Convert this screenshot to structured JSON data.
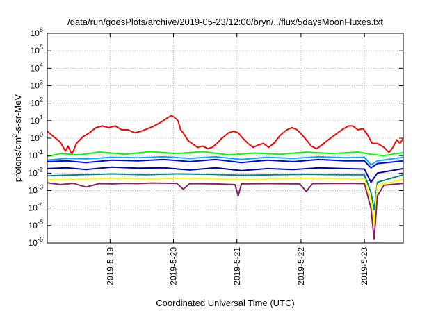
{
  "chart_data": {
    "type": "line",
    "title": "/data/run/goesPlots/archive/2019-05-23/12:00/bryn/../flux/5daysMoonFluxes.txt",
    "xlabel": "Coordinated Universal Time (UTC)",
    "ylabel": {
      "prefix": "protons/cm",
      "sup": "2",
      "suffix": "-s-sr-MeV"
    },
    "x_range_days": [
      0,
      5.5
    ],
    "x_ticks": [
      {
        "t": 0.97,
        "label": "2019-5-19"
      },
      {
        "t": 1.95,
        "label": "2019-5-20"
      },
      {
        "t": 2.93,
        "label": "2019-5-21"
      },
      {
        "t": 3.92,
        "label": "2019-5-22"
      },
      {
        "t": 4.9,
        "label": "2019-5-23"
      }
    ],
    "y_scale": "log",
    "y_exponent_range": [
      -6,
      6
    ],
    "y_ticks": [
      {
        "exp": 6,
        "base": "10",
        "sup": "6"
      },
      {
        "exp": 5,
        "base": "10",
        "sup": "5"
      },
      {
        "exp": 4,
        "base": "10",
        "sup": "4"
      },
      {
        "exp": 3,
        "base": "10",
        "sup": "3"
      },
      {
        "exp": 2,
        "base": "10",
        "sup": "2"
      },
      {
        "exp": 1,
        "base": "10",
        "sup": "1"
      },
      {
        "exp": 0,
        "base": "10",
        "sup": "0"
      },
      {
        "exp": -1,
        "base": "10",
        "sup": "-1"
      },
      {
        "exp": -2,
        "base": "10",
        "sup": "-2"
      },
      {
        "exp": -3,
        "base": "10",
        "sup": "-3"
      },
      {
        "exp": -4,
        "base": "10",
        "sup": "-4"
      },
      {
        "exp": -5,
        "base": "10",
        "sup": "-5"
      },
      {
        "exp": -6,
        "base": "10",
        "sup": "-6"
      }
    ],
    "grid": true,
    "series": [
      {
        "color": "#ff0000",
        "points": [
          [
            0.0,
            2.5
          ],
          [
            0.1,
            1.2
          ],
          [
            0.2,
            0.6
          ],
          [
            0.28,
            0.18
          ],
          [
            0.32,
            0.35
          ],
          [
            0.38,
            0.12
          ],
          [
            0.45,
            0.5
          ],
          [
            0.55,
            1.2
          ],
          [
            0.65,
            2
          ],
          [
            0.75,
            4
          ],
          [
            0.85,
            5
          ],
          [
            0.95,
            4
          ],
          [
            1.05,
            5
          ],
          [
            1.15,
            3
          ],
          [
            1.25,
            3
          ],
          [
            1.35,
            2
          ],
          [
            1.45,
            2.5
          ],
          [
            1.55,
            3.5
          ],
          [
            1.65,
            5
          ],
          [
            1.75,
            8
          ],
          [
            1.85,
            14
          ],
          [
            1.92,
            20
          ],
          [
            1.98,
            14
          ],
          [
            2.02,
            10
          ],
          [
            2.06,
            3
          ],
          [
            2.1,
            2
          ],
          [
            2.18,
            0.7
          ],
          [
            2.25,
            0.45
          ],
          [
            2.32,
            0.3
          ],
          [
            2.4,
            0.35
          ],
          [
            2.48,
            0.25
          ],
          [
            2.55,
            0.3
          ],
          [
            2.62,
            0.5
          ],
          [
            2.7,
            1
          ],
          [
            2.8,
            2
          ],
          [
            2.88,
            2.5
          ],
          [
            2.95,
            2
          ],
          [
            3.02,
            1
          ],
          [
            3.1,
            0.5
          ],
          [
            3.18,
            0.3
          ],
          [
            3.26,
            0.4
          ],
          [
            3.34,
            0.5
          ],
          [
            3.42,
            0.3
          ],
          [
            3.5,
            0.5
          ],
          [
            3.6,
            1.5
          ],
          [
            3.7,
            3
          ],
          [
            3.78,
            4
          ],
          [
            3.86,
            3
          ],
          [
            3.94,
            1.5
          ],
          [
            4.0,
            0.8
          ],
          [
            4.08,
            0.35
          ],
          [
            4.16,
            0.25
          ],
          [
            4.24,
            0.4
          ],
          [
            4.34,
            0.8
          ],
          [
            4.44,
            1.5
          ],
          [
            4.55,
            3
          ],
          [
            4.65,
            5
          ],
          [
            4.72,
            5
          ],
          [
            4.8,
            3
          ],
          [
            4.88,
            3.5
          ],
          [
            4.95,
            1.5
          ],
          [
            5.02,
            0.5
          ],
          [
            5.1,
            0.5
          ],
          [
            5.2,
            0.3
          ],
          [
            5.28,
            0.15
          ],
          [
            5.34,
            0.3
          ],
          [
            5.4,
            0.8
          ],
          [
            5.45,
            0.5
          ],
          [
            5.5,
            1.0
          ]
        ]
      },
      {
        "color": "#00ff00",
        "points": [
          [
            0.0,
            0.09
          ],
          [
            0.2,
            0.13
          ],
          [
            0.5,
            0.11
          ],
          [
            0.8,
            0.16
          ],
          [
            1.2,
            0.12
          ],
          [
            1.6,
            0.17
          ],
          [
            2.0,
            0.13
          ],
          [
            2.4,
            0.17
          ],
          [
            2.8,
            0.11
          ],
          [
            3.2,
            0.14
          ],
          [
            3.6,
            0.12
          ],
          [
            4.0,
            0.16
          ],
          [
            4.4,
            0.13
          ],
          [
            4.8,
            0.16
          ],
          [
            5.0,
            0.12
          ],
          [
            5.2,
            0.1
          ],
          [
            5.5,
            0.15
          ]
        ]
      },
      {
        "color": "#00aaff",
        "points": [
          [
            0.0,
            0.055
          ],
          [
            0.3,
            0.07
          ],
          [
            0.6,
            0.065
          ],
          [
            1.0,
            0.08
          ],
          [
            1.4,
            0.075
          ],
          [
            1.8,
            0.085
          ],
          [
            2.2,
            0.07
          ],
          [
            2.6,
            0.085
          ],
          [
            3.0,
            0.06
          ],
          [
            3.4,
            0.08
          ],
          [
            3.8,
            0.07
          ],
          [
            4.2,
            0.085
          ],
          [
            4.6,
            0.075
          ],
          [
            4.9,
            0.08
          ],
          [
            5.0,
            0.03
          ],
          [
            5.1,
            0.05
          ],
          [
            5.5,
            0.08
          ]
        ]
      },
      {
        "color": "#0000ff",
        "points": [
          [
            0.0,
            0.045
          ],
          [
            0.3,
            0.05
          ],
          [
            0.6,
            0.04
          ],
          [
            1.0,
            0.055
          ],
          [
            1.4,
            0.05
          ],
          [
            1.8,
            0.06
          ],
          [
            2.2,
            0.045
          ],
          [
            2.6,
            0.06
          ],
          [
            3.0,
            0.04
          ],
          [
            3.4,
            0.055
          ],
          [
            3.8,
            0.045
          ],
          [
            4.2,
            0.06
          ],
          [
            4.6,
            0.05
          ],
          [
            4.9,
            0.05
          ],
          [
            5.0,
            0.02
          ],
          [
            5.1,
            0.035
          ],
          [
            5.5,
            0.05
          ]
        ]
      },
      {
        "color": "#0000aa",
        "points": [
          [
            0.0,
            0.018
          ],
          [
            0.3,
            0.02
          ],
          [
            0.6,
            0.016
          ],
          [
            1.0,
            0.022
          ],
          [
            1.4,
            0.019
          ],
          [
            1.8,
            0.02
          ],
          [
            2.2,
            0.015
          ],
          [
            2.6,
            0.02
          ],
          [
            3.0,
            0.014
          ],
          [
            3.4,
            0.018
          ],
          [
            3.8,
            0.016
          ],
          [
            4.2,
            0.02
          ],
          [
            4.6,
            0.018
          ],
          [
            4.9,
            0.017
          ],
          [
            5.0,
            0.003
          ],
          [
            5.1,
            0.01
          ],
          [
            5.5,
            0.018
          ]
        ]
      },
      {
        "color": "#008888",
        "points": [
          [
            0.0,
            0.007
          ],
          [
            0.5,
            0.008
          ],
          [
            1.0,
            0.009
          ],
          [
            1.5,
            0.008
          ],
          [
            2.0,
            0.009
          ],
          [
            2.5,
            0.0085
          ],
          [
            3.0,
            0.0075
          ],
          [
            3.5,
            0.008
          ],
          [
            4.0,
            0.0085
          ],
          [
            4.5,
            0.008
          ],
          [
            4.9,
            0.008
          ],
          [
            5.0,
            0.0008
          ],
          [
            5.05,
            8e-05
          ],
          [
            5.1,
            0.003
          ],
          [
            5.5,
            0.008
          ]
        ]
      },
      {
        "color": "#ffff00",
        "points": [
          [
            0.0,
            0.004
          ],
          [
            0.5,
            0.0045
          ],
          [
            1.0,
            0.005
          ],
          [
            1.5,
            0.0045
          ],
          [
            2.0,
            0.005
          ],
          [
            2.5,
            0.0048
          ],
          [
            3.0,
            0.0042
          ],
          [
            3.5,
            0.0046
          ],
          [
            4.0,
            0.005
          ],
          [
            4.5,
            0.0046
          ],
          [
            4.9,
            0.0045
          ],
          [
            5.0,
            0.0003
          ],
          [
            5.05,
            1e-05
          ],
          [
            5.1,
            0.002
          ],
          [
            5.5,
            0.0045
          ]
        ]
      },
      {
        "color": "#882266",
        "points": [
          [
            0.0,
            0.0028
          ],
          [
            0.2,
            0.0022
          ],
          [
            0.4,
            0.0026
          ],
          [
            0.6,
            0.0016
          ],
          [
            0.8,
            0.0025
          ],
          [
            1.0,
            0.0024
          ],
          [
            1.2,
            0.0026
          ],
          [
            1.4,
            0.0025
          ],
          [
            1.6,
            0.0027
          ],
          [
            2.0,
            0.0026
          ],
          [
            2.1,
            0.0012
          ],
          [
            2.2,
            0.0025
          ],
          [
            2.6,
            0.0024
          ],
          [
            2.9,
            0.0022
          ],
          [
            2.95,
            0.0005
          ],
          [
            3.0,
            0.0024
          ],
          [
            3.4,
            0.0025
          ],
          [
            3.9,
            0.0024
          ],
          [
            4.0,
            0.0009
          ],
          [
            4.1,
            0.0025
          ],
          [
            4.6,
            0.0026
          ],
          [
            4.9,
            0.0025
          ],
          [
            5.0,
            0.0001
          ],
          [
            5.05,
            1.6e-06
          ],
          [
            5.1,
            0.0005
          ],
          [
            5.2,
            0.002
          ],
          [
            5.5,
            0.0026
          ]
        ]
      }
    ]
  }
}
